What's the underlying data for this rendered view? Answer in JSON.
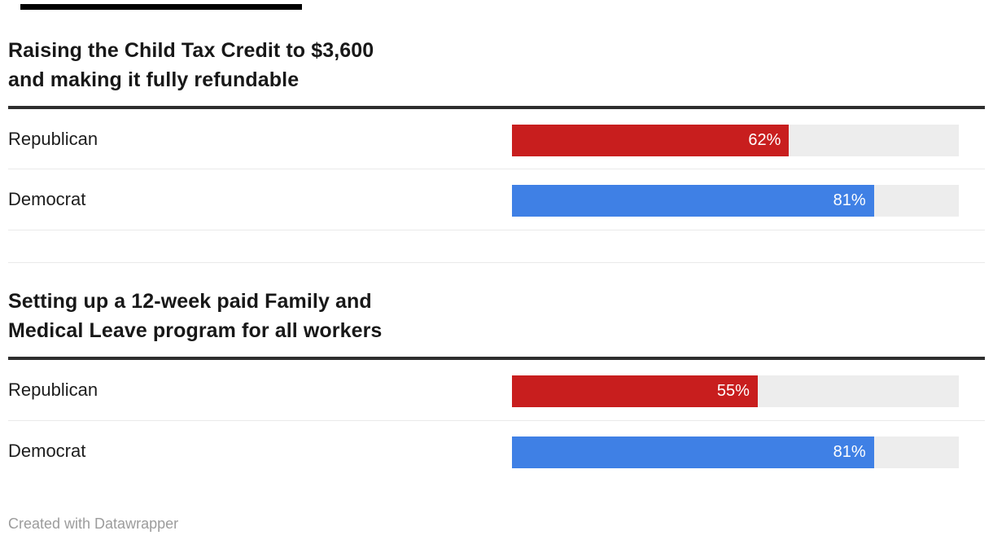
{
  "page": {
    "background": "#ffffff"
  },
  "top_bar": {
    "color": "#000000"
  },
  "colors": {
    "republican": "#c81e1e",
    "democrat": "#3f80e5",
    "track": "#ededed",
    "rule": "#2e2e2e",
    "separator": "#e9e9e9",
    "title_text": "#181818",
    "label_text": "#1d1d1d",
    "value_text": "#ffffff",
    "credit_text": "#9c9c9c"
  },
  "sections": [
    {
      "title": "Raising the Child Tax Credit to $3,600\nand making it fully refundable",
      "rows": [
        {
          "label": "Republican",
          "value": 62,
          "value_label": "62%",
          "color": "#c81e1e"
        },
        {
          "label": "Democrat",
          "value": 81,
          "value_label": "81%",
          "color": "#3f80e5"
        }
      ]
    },
    {
      "title": "Setting up a 12-week paid Family and\nMedical Leave program for all workers",
      "rows": [
        {
          "label": "Republican",
          "value": 55,
          "value_label": "55%",
          "color": "#c81e1e"
        },
        {
          "label": "Democrat",
          "value": 81,
          "value_label": "81%",
          "color": "#3f80e5"
        }
      ]
    }
  ],
  "footer": {
    "credit": "Created with Datawrapper"
  },
  "chart_data": [
    {
      "type": "bar",
      "orientation": "horizontal",
      "title": "Raising the Child Tax Credit to $3,600 and making it fully refundable",
      "categories": [
        "Republican",
        "Democrat"
      ],
      "values": [
        62,
        81
      ],
      "data_labels": [
        "62%",
        "81%"
      ],
      "unit": "%",
      "xlim": [
        0,
        100
      ],
      "bar_colors": [
        "#c81e1e",
        "#3f80e5"
      ],
      "track_color": "#ededed",
      "legend": "none",
      "grid": false
    },
    {
      "type": "bar",
      "orientation": "horizontal",
      "title": "Setting up a 12-week paid Family and Medical Leave program for all workers",
      "categories": [
        "Republican",
        "Democrat"
      ],
      "values": [
        55,
        81
      ],
      "data_labels": [
        "55%",
        "81%"
      ],
      "unit": "%",
      "xlim": [
        0,
        100
      ],
      "bar_colors": [
        "#c81e1e",
        "#3f80e5"
      ],
      "track_color": "#ededed",
      "legend": "none",
      "grid": false
    }
  ]
}
